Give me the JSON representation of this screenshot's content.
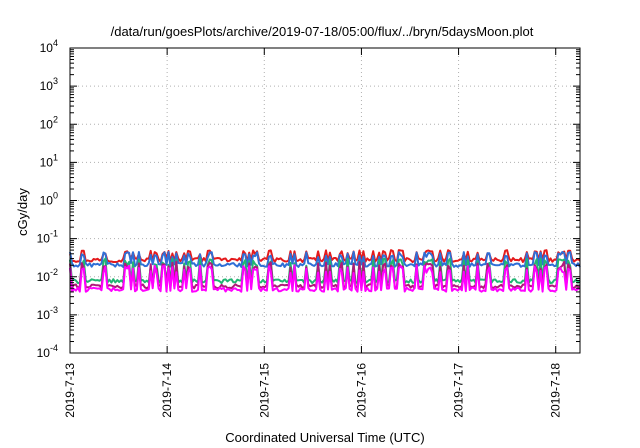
{
  "chart_data": {
    "type": "line",
    "title": "/data/run/goesPlots/archive/2019-07-18/05:00/flux/../bryn/5daysMoon.plot",
    "xlabel": "Coordinated Universal Time (UTC)",
    "ylabel": "cGy/day",
    "yscale": "log",
    "ylim": [
      0.0001,
      10000
    ],
    "xlim": [
      "2019-07-13T00:00",
      "2019-07-18T06:00"
    ],
    "grid": true,
    "legend": "none",
    "x_ticks": [
      "2019-7-13",
      "2019-7-14",
      "2019-7-15",
      "2019-7-16",
      "2019-7-17",
      "2019-7-18"
    ],
    "y_ticks": [
      {
        "base": "10",
        "exp": "4"
      },
      {
        "base": "10",
        "exp": "3"
      },
      {
        "base": "10",
        "exp": "2"
      },
      {
        "base": "10",
        "exp": "1"
      },
      {
        "base": "10",
        "exp": "0"
      },
      {
        "base": "10",
        "exp": "-1"
      },
      {
        "base": "10",
        "exp": "-2"
      },
      {
        "base": "10",
        "exp": "-3"
      },
      {
        "base": "10",
        "exp": "-4"
      }
    ],
    "series": [
      {
        "color": "#e41a1c",
        "baseline": 0.027,
        "spike": 0.05
      },
      {
        "color": "#2f6fd6",
        "baseline": 0.02,
        "spike": 0.045
      },
      {
        "color": "#22b573",
        "baseline": 0.0075,
        "spike": 0.03
      },
      {
        "color": "#b0187a",
        "baseline": 0.0055,
        "spike": 0.025
      },
      {
        "color": "#ff00ff",
        "baseline": 0.0045,
        "spike": 0.02
      }
    ]
  }
}
